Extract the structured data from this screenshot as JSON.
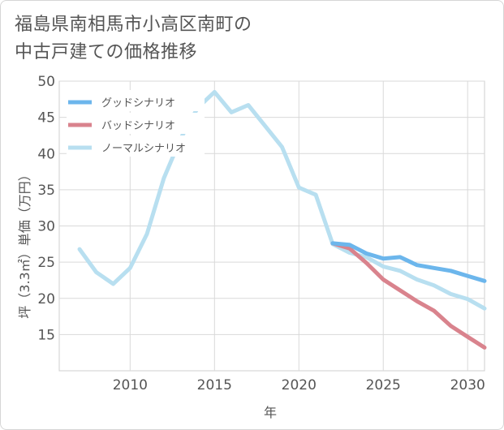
{
  "chart_data": {
    "type": "line",
    "title_lines": [
      "福島県南相馬市小高区南町の",
      "中古戸建ての価格推移"
    ],
    "xlabel": "年",
    "ylabel": "坪（3.3㎡）単価（万円）",
    "xlim": [
      2005.8,
      2031
    ],
    "ylim": [
      10,
      50
    ],
    "xticks": [
      2010,
      2015,
      2020,
      2025,
      2030
    ],
    "yticks": [
      15,
      20,
      25,
      30,
      35,
      40,
      45,
      50
    ],
    "grid": true,
    "legend_position": "top-left",
    "series": [
      {
        "name": "グッドシナリオ",
        "color": "#6cb6ec",
        "x": [
          2022,
          2023,
          2024,
          2025,
          2026,
          2027,
          2028,
          2029,
          2030,
          2031
        ],
        "values": [
          27.6,
          27.4,
          26.2,
          25.5,
          25.7,
          24.6,
          24.2,
          23.8,
          23.1,
          22.4
        ]
      },
      {
        "name": "バッドシナリオ",
        "color": "#d9838d",
        "x": [
          2022,
          2023,
          2024,
          2025,
          2026,
          2027,
          2028,
          2029,
          2030,
          2031
        ],
        "values": [
          27.6,
          26.9,
          24.9,
          22.6,
          21.1,
          19.6,
          18.3,
          16.2,
          14.7,
          13.2
        ]
      },
      {
        "name": "ノーマルシナリオ",
        "color": "#b8dff0",
        "x": [
          2007,
          2008,
          2009,
          2010,
          2011,
          2012,
          2013,
          2014,
          2015,
          2016,
          2017,
          2018,
          2019,
          2020,
          2021,
          2022,
          2023,
          2024,
          2025,
          2026,
          2027,
          2028,
          2029,
          2030,
          2031
        ],
        "values": [
          26.8,
          23.6,
          22.0,
          24.2,
          28.9,
          36.6,
          42.1,
          46.3,
          48.5,
          45.7,
          46.7,
          43.8,
          40.9,
          35.3,
          34.3,
          27.5,
          26.3,
          25.7,
          24.4,
          23.8,
          22.6,
          21.8,
          20.6,
          19.9,
          18.6
        ]
      }
    ]
  }
}
